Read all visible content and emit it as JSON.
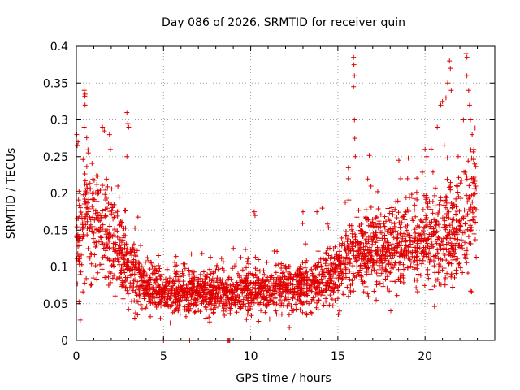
{
  "chart_data": {
    "type": "scatter",
    "title": "Day 086 of 2026, SRMTID for receiver quin",
    "xlabel": "GPS time / hours",
    "ylabel": "SRMTID / TECUs",
    "xlim": [
      0,
      24
    ],
    "ylim": [
      0,
      0.4
    ],
    "xticks": [
      0,
      5,
      10,
      15,
      20
    ],
    "xtick_labels": [
      "0",
      "5",
      "10",
      "15",
      "20"
    ],
    "yticks": [
      0,
      0.05,
      0.1,
      0.15,
      0.2,
      0.25,
      0.3,
      0.35,
      0.4
    ],
    "ytick_labels": [
      "0",
      "0.05",
      "0.1",
      "0.15",
      "0.2",
      "0.25",
      "0.3",
      "0.35",
      "0.4"
    ],
    "grid": true,
    "marker": "+",
    "color": "#e00000",
    "envelope": {
      "x": [
        0,
        0.5,
        1,
        1.5,
        2,
        2.5,
        3,
        3.5,
        4,
        4.5,
        5,
        6,
        7,
        8,
        9,
        10,
        11,
        12,
        13,
        14,
        15,
        15.5,
        16,
        17,
        18,
        19,
        20,
        20.5,
        21,
        21.5,
        22,
        22.5,
        23
      ],
      "y": [
        0.13,
        0.17,
        0.16,
        0.15,
        0.14,
        0.12,
        0.11,
        0.09,
        0.075,
        0.07,
        0.065,
        0.065,
        0.065,
        0.065,
        0.065,
        0.07,
        0.07,
        0.07,
        0.075,
        0.08,
        0.09,
        0.11,
        0.12,
        0.125,
        0.125,
        0.13,
        0.13,
        0.13,
        0.14,
        0.14,
        0.15,
        0.17,
        0.2
      ],
      "spread": [
        0.05,
        0.07,
        0.07,
        0.06,
        0.055,
        0.05,
        0.045,
        0.035,
        0.028,
        0.026,
        0.025,
        0.025,
        0.025,
        0.025,
        0.025,
        0.027,
        0.027,
        0.027,
        0.028,
        0.03,
        0.032,
        0.04,
        0.045,
        0.045,
        0.045,
        0.05,
        0.05,
        0.05,
        0.055,
        0.055,
        0.06,
        0.07,
        0.07
      ]
    },
    "sample_count": 2600,
    "spikes": [
      {
        "x": 0.02,
        "y": 0.28
      },
      {
        "x": 0.05,
        "y": 0.265
      },
      {
        "x": 0.1,
        "y": 0.27
      },
      {
        "x": 0.45,
        "y": 0.34
      },
      {
        "x": 0.5,
        "y": 0.335
      },
      {
        "x": 0.5,
        "y": 0.32
      },
      {
        "x": 0.45,
        "y": 0.29
      },
      {
        "x": 1.5,
        "y": 0.29
      },
      {
        "x": 1.6,
        "y": 0.285
      },
      {
        "x": 1.9,
        "y": 0.28
      },
      {
        "x": 1.95,
        "y": 0.26
      },
      {
        "x": 2.9,
        "y": 0.31
      },
      {
        "x": 2.95,
        "y": 0.295
      },
      {
        "x": 3.0,
        "y": 0.29
      },
      {
        "x": 2.9,
        "y": 0.25
      },
      {
        "x": 10.2,
        "y": 0.175
      },
      {
        "x": 10.25,
        "y": 0.17
      },
      {
        "x": 13.0,
        "y": 0.175
      },
      {
        "x": 13.8,
        "y": 0.175
      },
      {
        "x": 14.1,
        "y": 0.18
      },
      {
        "x": 15.6,
        "y": 0.22
      },
      {
        "x": 15.9,
        "y": 0.385
      },
      {
        "x": 15.92,
        "y": 0.375
      },
      {
        "x": 15.95,
        "y": 0.36
      },
      {
        "x": 15.9,
        "y": 0.345
      },
      {
        "x": 15.95,
        "y": 0.3
      },
      {
        "x": 15.97,
        "y": 0.275
      },
      {
        "x": 16.0,
        "y": 0.25
      },
      {
        "x": 15.6,
        "y": 0.235
      },
      {
        "x": 16.9,
        "y": 0.21
      },
      {
        "x": 18.5,
        "y": 0.245
      },
      {
        "x": 18.6,
        "y": 0.22
      },
      {
        "x": 19.0,
        "y": 0.22
      },
      {
        "x": 20.0,
        "y": 0.26
      },
      {
        "x": 20.1,
        "y": 0.25
      },
      {
        "x": 20.7,
        "y": 0.29
      },
      {
        "x": 20.9,
        "y": 0.32
      },
      {
        "x": 21.0,
        "y": 0.325
      },
      {
        "x": 21.2,
        "y": 0.33
      },
      {
        "x": 21.3,
        "y": 0.35
      },
      {
        "x": 21.4,
        "y": 0.38
      },
      {
        "x": 21.45,
        "y": 0.37
      },
      {
        "x": 21.5,
        "y": 0.34
      },
      {
        "x": 21.9,
        "y": 0.25
      },
      {
        "x": 22.2,
        "y": 0.3
      },
      {
        "x": 22.35,
        "y": 0.39
      },
      {
        "x": 22.4,
        "y": 0.385
      },
      {
        "x": 22.4,
        "y": 0.36
      },
      {
        "x": 22.5,
        "y": 0.34
      },
      {
        "x": 22.55,
        "y": 0.32
      },
      {
        "x": 22.6,
        "y": 0.3
      },
      {
        "x": 22.7,
        "y": 0.28
      },
      {
        "x": 22.8,
        "y": 0.26
      },
      {
        "x": 22.85,
        "y": 0.24
      },
      {
        "x": 22.75,
        "y": 0.215
      },
      {
        "x": 22.9,
        "y": 0.21
      },
      {
        "x": 22.8,
        "y": 0.195
      },
      {
        "x": 22.85,
        "y": 0.18
      }
    ],
    "zero_points": [
      {
        "x": 5.0,
        "y": 0.0
      },
      {
        "x": 6.5,
        "y": 0.0
      },
      {
        "x": 8.7,
        "y": 0.0
      },
      {
        "x": 8.75,
        "y": 0.0
      },
      {
        "x": 8.8,
        "y": 0.0
      }
    ]
  }
}
